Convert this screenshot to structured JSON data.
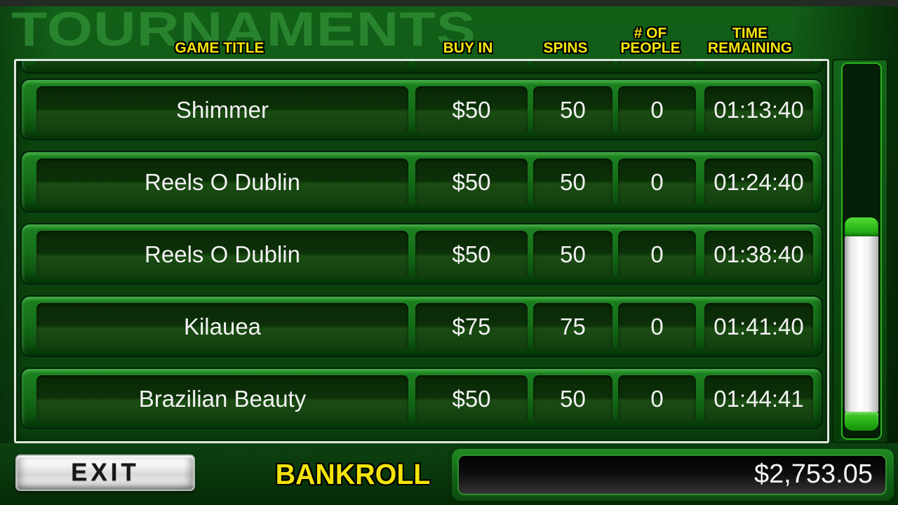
{
  "title": "TOURNAMENTS",
  "table": {
    "headers": {
      "game_title": {
        "line1": "",
        "line2": "GAME TITLE"
      },
      "buy_in": {
        "line1": "",
        "line2": "BUY IN"
      },
      "spins": {
        "line1": "",
        "line2": "SPINS"
      },
      "people": {
        "line1": "# OF",
        "line2": "PEOPLE"
      },
      "time": {
        "line1": "TIME",
        "line2": "REMAINING"
      }
    },
    "partial_row_at_top": true,
    "rows": [
      {
        "game": "Shimmer",
        "buy_in": "$50",
        "spins": "50",
        "people": "0",
        "time_remaining": "01:13:40"
      },
      {
        "game": "Reels O Dublin",
        "buy_in": "$50",
        "spins": "50",
        "people": "0",
        "time_remaining": "01:24:40"
      },
      {
        "game": "Reels O Dublin",
        "buy_in": "$50",
        "spins": "50",
        "people": "0",
        "time_remaining": "01:38:40"
      },
      {
        "game": "Kilauea",
        "buy_in": "$75",
        "spins": "75",
        "people": "0",
        "time_remaining": "01:41:40"
      },
      {
        "game": "Brazilian Beauty",
        "buy_in": "$50",
        "spins": "50",
        "people": "0",
        "time_remaining": "01:44:41"
      }
    ]
  },
  "scrollbar": {
    "thumb_top_pct": 41,
    "thumb_height_pct": 57
  },
  "footer": {
    "exit_label": "EXIT",
    "bankroll_label": "BANKROLL",
    "bankroll_value": "$2,753.05"
  },
  "colors": {
    "accent_yellow": "#f2e40a",
    "bright_green": "#2cb31c",
    "row_frame_green": "#1b7f1e",
    "cell_dark_green": "#0c3008",
    "panel_border": "#dfe8df",
    "row_text": "#f2f2f2",
    "bankroll_text": "#f5f5f5"
  }
}
